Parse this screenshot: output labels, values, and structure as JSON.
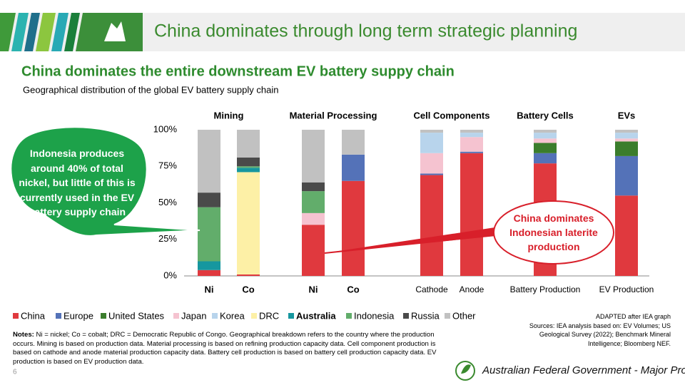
{
  "header": {
    "title": "China dominates through long term strategic planning"
  },
  "subtitle": "China dominates the entire downstream EV battery suppy chain",
  "chart_data": {
    "type": "stacked_bar",
    "title": "Geographical distribution of the global EV battery supply chain",
    "groups": [
      "Mining",
      "Material Processing",
      "Cell Components",
      "Battery Cells",
      "EVs"
    ],
    "categories": [
      "Ni",
      "Co",
      "Ni",
      "Co",
      "Cathode",
      "Anode",
      "Battery Production",
      "EV Production"
    ],
    "ylim": [
      0,
      100
    ],
    "yticks": [
      {
        "value": 0,
        "label": "0%"
      },
      {
        "value": 25,
        "label": "25%"
      },
      {
        "value": 50,
        "label": "50%"
      },
      {
        "value": 75,
        "label": "75%"
      },
      {
        "value": 100,
        "label": "100%"
      }
    ],
    "series": [
      {
        "name": "China",
        "color": "#e0393e",
        "values": [
          4,
          1,
          35,
          65,
          69,
          84,
          77,
          55
        ]
      },
      {
        "name": "Europe",
        "color": "#5472b8",
        "values": [
          0,
          0,
          0,
          18,
          1,
          1,
          7,
          27
        ]
      },
      {
        "name": "United States",
        "color": "#3b7d2c",
        "values": [
          0,
          0,
          0,
          0,
          0,
          0,
          7,
          10
        ]
      },
      {
        "name": "Japan",
        "color": "#f5c3d0",
        "values": [
          0,
          0,
          8,
          0,
          14,
          10,
          3,
          2
        ]
      },
      {
        "name": "Korea",
        "color": "#b8d4ec",
        "values": [
          0,
          0,
          0,
          0,
          14,
          3,
          4,
          4
        ]
      },
      {
        "name": "DRC",
        "color": "#fdf0a6",
        "values": [
          0,
          70,
          0,
          0,
          0,
          0,
          0,
          0
        ]
      },
      {
        "name": "Australia",
        "color": "#16979f",
        "values": [
          6,
          3,
          0,
          0,
          0,
          0,
          0,
          0
        ]
      },
      {
        "name": "Indonesia",
        "color": "#62ad6b",
        "values": [
          37,
          1,
          15,
          0,
          0,
          0,
          0,
          0
        ]
      },
      {
        "name": "Russia",
        "color": "#4a4a4a",
        "values": [
          10,
          6,
          6,
          0,
          0,
          0,
          0,
          0
        ]
      },
      {
        "name": "Other",
        "color": "#c1c1c1",
        "values": [
          43,
          19,
          36,
          17,
          2,
          2,
          2,
          2
        ]
      }
    ],
    "annotations": [
      "Indonesia produces around 40% of total nickel, but little of this is currently used in the EV battery supply chain",
      "China dominates Indonesian laterite production"
    ]
  },
  "notes": {
    "label": "Notes:",
    "text": "Ni = nickel; Co = cobalt; DRC = Democratic Republic of Congo. Geographical breakdown refers to the country where the production occurs. Mining is based on production data. Material processing is based on refining production capacity data. Cell component production is based on cathode and anode material production capacity data. Battery cell production is based on battery cell production capacity data. EV production is based on EV production data."
  },
  "sources": [
    "ADAPTED after IEA graph",
    "Sources: IEA analysis based on: EV Volumes; US Geological Survey (2022); Benchmark Mineral Intelligence; Bloomberg NEF."
  ],
  "footer": "Australian Federal Government - Major Project Status",
  "page_number": "6"
}
